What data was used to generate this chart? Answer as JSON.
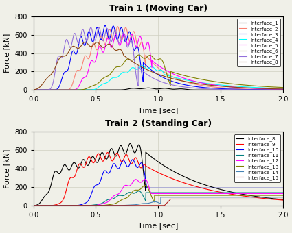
{
  "title1": "Train 1 (Moving Car)",
  "title2": "Train 2 (Standing Car)",
  "xlabel": "Time [sec]",
  "ylabel": "Force [kN]",
  "xlim": [
    0.0,
    2.0
  ],
  "ylim": [
    0,
    800
  ],
  "yticks": [
    0,
    200,
    400,
    600,
    800
  ],
  "xticks": [
    0.0,
    0.5,
    1.0,
    1.5,
    2.0
  ],
  "legend1": [
    "Interface_1",
    "Interface_2",
    "Interface_3",
    "Interface_4",
    "Interface_5",
    "Interface_6",
    "Interface_7",
    "Interface_8"
  ],
  "legend2": [
    "Interface_8",
    "Interface_9",
    "Interface_10",
    "Interface_11",
    "Interface_12",
    "Interface_13",
    "Interface_14",
    "Interface_15"
  ],
  "colors1": [
    "black",
    "salmon",
    "blue",
    "cyan",
    "magenta",
    "olive",
    "mediumpurple",
    "saddlebrown"
  ],
  "colors2": [
    "black",
    "red",
    "blue",
    "teal",
    "magenta",
    "olive",
    "steelblue",
    "firebrick"
  ],
  "bg_color": "#f0f0e8",
  "grid_color": "#d0d0c0"
}
